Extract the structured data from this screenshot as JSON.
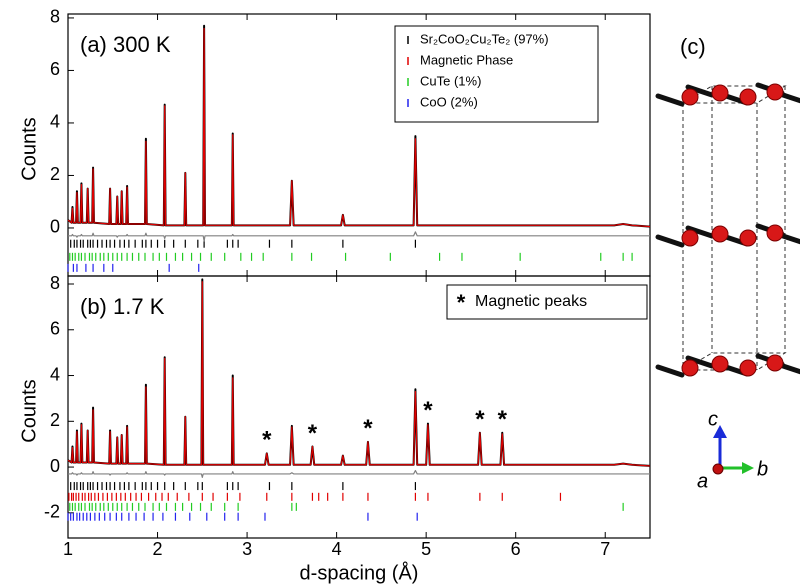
{
  "chart_data": [
    {
      "type": "line",
      "label": "(a) 300 K",
      "ylabel": "Counts",
      "xlim": [
        1,
        7.5
      ],
      "xticks": [
        1,
        2,
        3,
        4,
        5,
        6,
        7
      ],
      "ylim": [
        -1.83,
        8.15
      ],
      "yticks": [
        0,
        2,
        4,
        6,
        8
      ],
      "x": [
        1.0,
        1.04,
        1.05,
        1.06,
        1.09,
        1.1,
        1.11,
        1.14,
        1.15,
        1.16,
        1.21,
        1.22,
        1.23,
        1.27,
        1.28,
        1.29,
        1.46,
        1.47,
        1.48,
        1.54,
        1.55,
        1.56,
        1.59,
        1.6,
        1.61,
        1.65,
        1.66,
        1.67,
        1.86,
        1.87,
        1.88,
        2.07,
        2.08,
        2.09,
        2.3,
        2.31,
        2.32,
        2.51,
        2.52,
        2.53,
        2.83,
        2.84,
        2.85,
        3.48,
        3.5,
        3.52,
        4.05,
        4.07,
        4.09,
        4.86,
        4.88,
        4.9,
        7.1,
        7.2,
        7.3,
        7.5
      ],
      "series": [
        {
          "color": "#000000",
          "values": [
            0.3,
            0.2,
            0.8,
            0.2,
            0.2,
            1.4,
            0.2,
            0.2,
            1.7,
            0.2,
            0.2,
            1.5,
            0.2,
            0.2,
            2.3,
            0.2,
            0.15,
            1.5,
            0.15,
            0.15,
            1.2,
            0.15,
            0.15,
            1.4,
            0.15,
            0.15,
            1.6,
            0.15,
            0.15,
            3.4,
            0.15,
            0.1,
            4.7,
            0.1,
            0.1,
            2.1,
            0.1,
            0.1,
            7.7,
            0.1,
            0.1,
            3.6,
            0.1,
            0.1,
            1.8,
            0.1,
            0.1,
            0.5,
            0.1,
            0.1,
            3.5,
            0.1,
            0.1,
            0.15,
            0.1,
            0.05
          ]
        },
        {
          "color": "#e00000",
          "values": [
            0.3,
            0.2,
            0.75,
            0.2,
            0.2,
            1.35,
            0.2,
            0.2,
            1.65,
            0.2,
            0.2,
            1.5,
            0.2,
            0.2,
            2.25,
            0.2,
            0.15,
            1.5,
            0.15,
            0.15,
            1.2,
            0.15,
            0.15,
            1.4,
            0.15,
            0.15,
            1.55,
            0.15,
            0.15,
            3.3,
            0.15,
            0.1,
            4.65,
            0.1,
            0.1,
            2.1,
            0.1,
            0.1,
            7.6,
            0.1,
            0.1,
            3.55,
            0.1,
            0.1,
            1.8,
            0.1,
            0.1,
            0.5,
            0.1,
            0.1,
            3.4,
            0.1,
            0.1,
            0.15,
            0.1,
            0.05
          ]
        },
        {
          "color": "#808080",
          "values": [
            -0.3,
            -0.3,
            -0.25,
            -0.3,
            -0.3,
            -0.35,
            -0.3,
            -0.3,
            -0.25,
            -0.3,
            -0.3,
            -0.3,
            -0.3,
            -0.3,
            -0.2,
            -0.3,
            -0.3,
            -0.3,
            -0.3,
            -0.3,
            -0.35,
            -0.3,
            -0.3,
            -0.3,
            -0.3,
            -0.3,
            -0.25,
            -0.3,
            -0.3,
            -0.2,
            -0.3,
            -0.3,
            -0.4,
            -0.3,
            -0.3,
            -0.3,
            -0.3,
            -0.3,
            -0.5,
            -0.3,
            -0.3,
            -0.25,
            -0.3,
            -0.3,
            -0.3,
            -0.3,
            -0.3,
            -0.3,
            -0.3,
            -0.3,
            -0.15,
            -0.3,
            -0.3,
            -0.3,
            -0.3,
            -0.3
          ]
        }
      ],
      "reflections": [
        {
          "name": "Sr₂CoO₂Cu₂Te₂ (97%)",
          "color": "#000000",
          "level": -0.6,
          "positions": [
            1.03,
            1.07,
            1.1,
            1.14,
            1.17,
            1.22,
            1.25,
            1.28,
            1.33,
            1.38,
            1.43,
            1.47,
            1.52,
            1.58,
            1.63,
            1.68,
            1.75,
            1.83,
            1.87,
            1.93,
            2.0,
            2.08,
            2.18,
            2.31,
            2.45,
            2.52,
            2.78,
            2.84,
            2.9,
            3.25,
            3.5,
            4.07,
            4.88
          ]
        },
        {
          "name": "Magnetic Phase",
          "color": "#e00000",
          "level": -1.0,
          "positions": []
        },
        {
          "name": "CuTe (1%)",
          "color": "#22cc22",
          "level": -1.1,
          "positions": [
            1.02,
            1.05,
            1.08,
            1.12,
            1.15,
            1.19,
            1.24,
            1.27,
            1.31,
            1.36,
            1.4,
            1.45,
            1.5,
            1.55,
            1.6,
            1.66,
            1.72,
            1.79,
            1.86,
            1.95,
            2.02,
            2.1,
            2.2,
            2.28,
            2.38,
            2.48,
            2.6,
            2.75,
            2.93,
            3.05,
            3.18,
            3.5,
            3.72,
            4.1,
            4.6,
            5.15,
            5.4,
            6.05,
            6.95,
            7.2,
            7.3
          ]
        },
        {
          "name": "CoO (2%)",
          "color": "#2222ee",
          "level": -1.52,
          "positions": [
            1.0,
            1.06,
            1.1,
            1.2,
            1.28,
            1.4,
            1.5,
            2.13,
            2.46
          ]
        }
      ]
    },
    {
      "type": "line",
      "label": "(b) 1.7 K",
      "ylabel": "Counts",
      "xlabel": "d-spacing (Å)",
      "xlim": [
        1,
        7.5
      ],
      "xticks": [
        1,
        2,
        3,
        4,
        5,
        6,
        7
      ],
      "ylim": [
        -3.1,
        8.35
      ],
      "yticks": [
        -2,
        0,
        2,
        4,
        6,
        8
      ],
      "marker": "*",
      "marker_legend": "Magnetic peaks",
      "marked_peaks": [
        3.22,
        3.73,
        4.35,
        5.02,
        5.6,
        5.85
      ],
      "x": [
        1.0,
        1.04,
        1.05,
        1.06,
        1.09,
        1.1,
        1.11,
        1.14,
        1.15,
        1.16,
        1.21,
        1.22,
        1.23,
        1.27,
        1.28,
        1.29,
        1.46,
        1.47,
        1.48,
        1.54,
        1.55,
        1.56,
        1.59,
        1.6,
        1.61,
        1.65,
        1.66,
        1.67,
        1.86,
        1.87,
        1.88,
        2.07,
        2.08,
        2.09,
        2.3,
        2.31,
        2.32,
        2.49,
        2.5,
        2.51,
        2.83,
        2.84,
        2.85,
        3.2,
        3.22,
        3.24,
        3.48,
        3.5,
        3.52,
        3.71,
        3.73,
        3.75,
        4.05,
        4.07,
        4.09,
        4.33,
        4.35,
        4.37,
        4.86,
        4.88,
        4.9,
        5.0,
        5.02,
        5.04,
        5.58,
        5.6,
        5.62,
        5.83,
        5.85,
        5.87,
        7.1,
        7.2,
        7.3,
        7.5
      ],
      "series": [
        {
          "color": "#000000",
          "values": [
            0.3,
            0.2,
            0.9,
            0.2,
            0.2,
            1.6,
            0.2,
            0.2,
            1.9,
            0.2,
            0.2,
            1.6,
            0.2,
            0.2,
            2.6,
            0.2,
            0.15,
            1.6,
            0.15,
            0.15,
            1.3,
            0.15,
            0.15,
            1.4,
            0.15,
            0.15,
            1.8,
            0.15,
            0.15,
            3.6,
            0.15,
            0.1,
            4.8,
            0.1,
            0.1,
            2.2,
            0.1,
            0.1,
            8.2,
            0.1,
            0.1,
            4.0,
            0.1,
            0.1,
            0.6,
            0.1,
            0.1,
            1.8,
            0.1,
            0.1,
            0.9,
            0.1,
            0.1,
            0.5,
            0.1,
            0.1,
            1.1,
            0.1,
            0.1,
            3.4,
            0.1,
            0.1,
            1.9,
            0.1,
            0.1,
            1.5,
            0.1,
            0.1,
            1.5,
            0.1,
            0.1,
            0.15,
            0.1,
            0.05
          ]
        },
        {
          "color": "#e00000",
          "values": [
            0.3,
            0.2,
            0.85,
            0.2,
            0.2,
            1.55,
            0.2,
            0.2,
            1.85,
            0.2,
            0.2,
            1.6,
            0.2,
            0.2,
            2.5,
            0.2,
            0.15,
            1.55,
            0.15,
            0.15,
            1.3,
            0.15,
            0.15,
            1.4,
            0.15,
            0.15,
            1.75,
            0.15,
            0.15,
            3.5,
            0.15,
            0.1,
            4.75,
            0.1,
            0.1,
            2.2,
            0.1,
            0.1,
            8.1,
            0.1,
            0.1,
            3.9,
            0.1,
            0.1,
            0.6,
            0.1,
            0.1,
            1.75,
            0.1,
            0.1,
            0.9,
            0.1,
            0.1,
            0.5,
            0.1,
            0.1,
            1.1,
            0.1,
            0.1,
            3.3,
            0.1,
            0.1,
            1.85,
            0.1,
            0.1,
            1.5,
            0.1,
            0.1,
            1.45,
            0.1,
            0.1,
            0.15,
            0.1,
            0.05
          ]
        },
        {
          "color": "#808080",
          "values": [
            -0.3,
            -0.3,
            -0.25,
            -0.3,
            -0.3,
            -0.35,
            -0.3,
            -0.3,
            -0.25,
            -0.3,
            -0.3,
            -0.3,
            -0.3,
            -0.3,
            -0.2,
            -0.3,
            -0.3,
            -0.35,
            -0.3,
            -0.3,
            -0.3,
            -0.3,
            -0.3,
            -0.3,
            -0.3,
            -0.3,
            -0.25,
            -0.3,
            -0.3,
            -0.2,
            -0.3,
            -0.3,
            -0.35,
            -0.3,
            -0.3,
            -0.3,
            -0.3,
            -0.3,
            -0.45,
            -0.3,
            -0.3,
            -0.2,
            -0.3,
            -0.3,
            -0.3,
            -0.3,
            -0.3,
            -0.25,
            -0.3,
            -0.3,
            -0.3,
            -0.3,
            -0.3,
            -0.3,
            -0.3,
            -0.3,
            -0.3,
            -0.3,
            -0.3,
            -0.15,
            -0.3,
            -0.3,
            -0.3,
            -0.3,
            -0.3,
            -0.3,
            -0.3,
            -0.3,
            -0.3,
            -0.3,
            -0.3,
            -0.3,
            -0.3,
            -0.3
          ]
        }
      ],
      "reflections": [
        {
          "color": "#000000",
          "level": -0.83,
          "positions": [
            1.03,
            1.07,
            1.1,
            1.14,
            1.17,
            1.22,
            1.25,
            1.28,
            1.33,
            1.38,
            1.43,
            1.47,
            1.52,
            1.58,
            1.63,
            1.68,
            1.75,
            1.83,
            1.87,
            1.93,
            2.0,
            2.08,
            2.18,
            2.31,
            2.45,
            2.5,
            2.78,
            2.84,
            2.9,
            3.25,
            3.5,
            4.07,
            4.88
          ]
        },
        {
          "color": "#e00000",
          "level": -1.3,
          "positions": [
            1.01,
            1.04,
            1.06,
            1.09,
            1.12,
            1.16,
            1.19,
            1.23,
            1.26,
            1.3,
            1.34,
            1.39,
            1.44,
            1.49,
            1.54,
            1.59,
            1.64,
            1.7,
            1.76,
            1.82,
            1.9,
            1.98,
            2.05,
            2.12,
            2.22,
            2.35,
            2.5,
            2.62,
            2.78,
            2.92,
            3.22,
            3.5,
            3.73,
            3.8,
            3.9,
            4.07,
            4.35,
            4.88,
            5.02,
            5.6,
            5.85,
            6.5
          ]
        },
        {
          "color": "#22cc22",
          "level": -1.74,
          "positions": [
            1.02,
            1.05,
            1.08,
            1.12,
            1.15,
            1.19,
            1.24,
            1.27,
            1.31,
            1.36,
            1.4,
            1.45,
            1.5,
            1.55,
            1.6,
            1.66,
            1.72,
            1.79,
            1.86,
            1.95,
            2.02,
            2.1,
            2.2,
            2.28,
            2.38,
            2.48,
            2.6,
            2.75,
            2.9,
            3.5,
            3.55,
            7.2
          ]
        },
        {
          "color": "#2222ee",
          "level": -2.17,
          "positions": [
            1.0,
            1.03,
            1.06,
            1.1,
            1.13,
            1.17,
            1.21,
            1.25,
            1.3,
            1.35,
            1.41,
            1.47,
            1.54,
            1.6,
            1.68,
            1.76,
            1.85,
            1.95,
            2.06,
            2.2,
            2.36,
            2.55,
            2.75,
            2.9,
            3.2,
            4.35,
            4.9
          ]
        }
      ]
    }
  ],
  "structure": {
    "label": "(c)",
    "axis_c": "c",
    "axis_a": "a",
    "axis_b": "b"
  }
}
